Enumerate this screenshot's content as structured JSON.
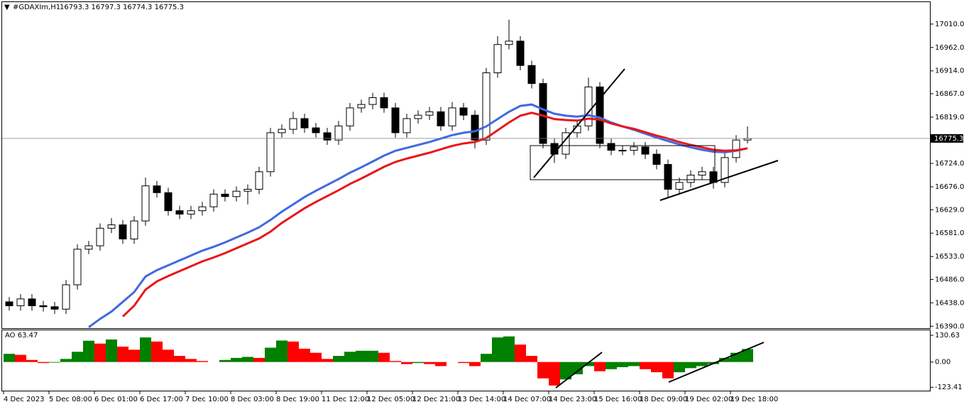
{
  "chart_data": [
    {
      "type": "candlestick",
      "title": "#GDAXIm,H1",
      "subtitle": "16793.3 16797.3 16774.3 16775.3",
      "xtick_labels": [
        "4 Dec 2023",
        "5 Dec 08:00",
        "6 Dec 01:00",
        "6 Dec 17:00",
        "7 Dec 10:00",
        "8 Dec 03:00",
        "8 Dec 19:00",
        "11 Dec 12:00",
        "12 Dec 05:00",
        "12 Dec 21:00",
        "13 Dec 14:00",
        "14 Dec 07:00",
        "14 Dec 23:00",
        "15 Dec 16:00",
        "18 Dec 09:00",
        "19 Dec 02:00",
        "19 Dec 18:00"
      ],
      "open": [
        16440,
        16432,
        16446,
        16432,
        16430,
        16425,
        16475,
        16548,
        16555,
        16591,
        16598,
        16569,
        16606,
        16678,
        16664,
        16627,
        16620,
        16627,
        16635,
        16661,
        16656,
        16667,
        16671,
        16707,
        16787,
        16794,
        16816,
        16797,
        16787,
        16772,
        16801,
        16838,
        16845,
        16859,
        16838,
        16787,
        16816,
        16823,
        16830,
        16801,
        16838,
        16823,
        16772,
        16910,
        16968,
        16975,
        16925,
        16888,
        16765,
        16743,
        16787,
        16801,
        16881,
        16765,
        16751,
        16751,
        16758,
        16743,
        16722,
        16671,
        16685,
        16700,
        16707,
        16685,
        16736,
        16772
      ],
      "high": [
        16450,
        16456,
        16456,
        16442,
        16440,
        16485,
        16558,
        16565,
        16601,
        16612,
        16608,
        16616,
        16695,
        16688,
        16674,
        16637,
        16637,
        16645,
        16671,
        16671,
        16677,
        16681,
        16717,
        16797,
        16804,
        16830,
        16826,
        16807,
        16797,
        16811,
        16848,
        16855,
        16869,
        16869,
        16848,
        16826,
        16833,
        16840,
        16840,
        16850,
        16848,
        16833,
        16920,
        16985,
        17019,
        16985,
        16935,
        16898,
        16775,
        16797,
        16811,
        16900,
        16891,
        16775,
        16761,
        16768,
        16768,
        16753,
        16732,
        16695,
        16710,
        16717,
        16717,
        16746,
        16782,
        16800
      ],
      "low": [
        16422,
        16422,
        16422,
        16420,
        16415,
        16415,
        16465,
        16538,
        16545,
        16581,
        16559,
        16559,
        16596,
        16654,
        16617,
        16610,
        16610,
        16617,
        16625,
        16646,
        16646,
        16640,
        16661,
        16697,
        16777,
        16784,
        16787,
        16777,
        16762,
        16762,
        16791,
        16828,
        16835,
        16828,
        16777,
        16777,
        16806,
        16813,
        16791,
        16791,
        16813,
        16755,
        16762,
        16900,
        16958,
        16915,
        16878,
        16755,
        16725,
        16733,
        16777,
        16791,
        16755,
        16741,
        16741,
        16741,
        16733,
        16712,
        16655,
        16661,
        16675,
        16690,
        16672,
        16675,
        16726,
        16765
      ],
      "close": [
        16432,
        16446,
        16432,
        16430,
        16425,
        16475,
        16548,
        16555,
        16591,
        16598,
        16569,
        16606,
        16678,
        16664,
        16627,
        16620,
        16627,
        16635,
        16661,
        16656,
        16667,
        16671,
        16707,
        16787,
        16794,
        16816,
        16797,
        16787,
        16772,
        16801,
        16838,
        16845,
        16859,
        16838,
        16787,
        16816,
        16823,
        16830,
        16801,
        16838,
        16823,
        16772,
        16910,
        16968,
        16975,
        16925,
        16888,
        16765,
        16743,
        16787,
        16801,
        16881,
        16765,
        16751,
        16751,
        16758,
        16743,
        16722,
        16671,
        16685,
        16700,
        16707,
        16685,
        16736,
        16772,
        16775.3
      ],
      "series": [
        {
          "color": "#4169e1",
          "values": [
            null,
            null,
            null,
            null,
            null,
            null,
            null,
            16388,
            16405,
            16420,
            16440,
            16460,
            16492,
            16505,
            16515,
            16525,
            16535,
            16545,
            16553,
            16562,
            16572,
            16582,
            16593,
            16608,
            16625,
            16640,
            16655,
            16668,
            16680,
            16692,
            16705,
            16716,
            16728,
            16740,
            16750,
            16756,
            16762,
            16768,
            16775,
            16782,
            16787,
            16790,
            16800,
            16815,
            16830,
            16842,
            16845,
            16835,
            16826,
            16822,
            16820,
            16823,
            16818,
            16808,
            16800,
            16793,
            16785,
            16777,
            16770,
            16763,
            16757,
            16752,
            16748,
            16747,
            16750,
            16755
          ]
        },
        {
          "color": "#e8161b",
          "values": [
            null,
            null,
            null,
            null,
            null,
            null,
            null,
            null,
            null,
            null,
            16410,
            16432,
            16465,
            16482,
            16493,
            16503,
            16513,
            16523,
            16531,
            16540,
            16550,
            16560,
            16570,
            16584,
            16602,
            16617,
            16632,
            16645,
            16657,
            16669,
            16682,
            16693,
            16705,
            16717,
            16727,
            16734,
            16740,
            16746,
            16753,
            16760,
            16765,
            16768,
            16776,
            16792,
            16808,
            16822,
            16828,
            16822,
            16815,
            16813,
            16812,
            16816,
            16814,
            16806,
            16800,
            16795,
            16788,
            16781,
            16775,
            16768,
            16762,
            16757,
            16752,
            16750,
            16751,
            16755
          ]
        }
      ],
      "current_price": 16775.3,
      "ylim": [
        16386,
        17055
      ],
      "yticks": [
        {
          "value": 17010,
          "label": "17010.0"
        },
        {
          "value": 16962,
          "label": "16962.0"
        },
        {
          "value": 16914,
          "label": "16914.0"
        },
        {
          "value": 16867,
          "label": "16867.0"
        },
        {
          "value": 16819,
          "label": "16819.0"
        },
        {
          "value": 16724,
          "label": "16724.0"
        },
        {
          "value": 16676,
          "label": "16676.0"
        },
        {
          "value": 16629,
          "label": "16629.0"
        },
        {
          "value": 16581,
          "label": "16581.0"
        },
        {
          "value": 16533,
          "label": "16533.0"
        },
        {
          "value": 16486,
          "label": "16486.0"
        },
        {
          "value": 16438,
          "label": "16438.0"
        },
        {
          "value": 16390,
          "label": "16390.0"
        }
      ]
    },
    {
      "type": "bar",
      "title": "AO 63.47",
      "values": [
        40,
        35,
        10,
        -5,
        -3,
        15,
        50,
        104,
        90,
        110,
        75,
        60,
        120,
        100,
        60,
        30,
        15,
        5,
        0,
        10,
        20,
        25,
        20,
        70,
        105,
        100,
        65,
        45,
        15,
        30,
        50,
        55,
        55,
        45,
        5,
        -10,
        -5,
        -10,
        -20,
        0,
        -5,
        -20,
        40,
        120,
        125,
        85,
        30,
        -80,
        -115,
        -85,
        -60,
        -20,
        -45,
        -35,
        -25,
        -20,
        -35,
        -50,
        -80,
        -50,
        -30,
        -20,
        -10,
        20,
        45,
        63.47
      ],
      "colors": {
        "up": "#008000",
        "down": "#ff0000"
      },
      "ylim": [
        -140,
        155
      ],
      "yticks": [
        {
          "value": 130.63,
          "label": "130.63"
        },
        {
          "value": 0,
          "label": "0.00"
        },
        {
          "value": -123.41,
          "label": "-123.41"
        }
      ]
    }
  ]
}
